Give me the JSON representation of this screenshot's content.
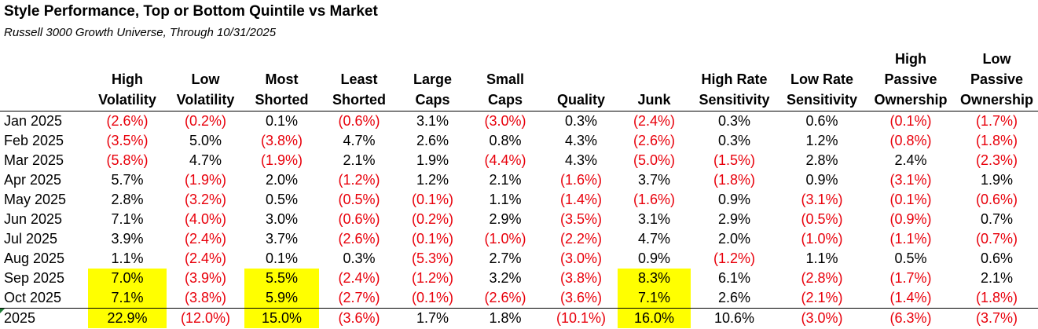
{
  "title": "Style Performance, Top or Bottom Quintile vs Market",
  "subtitle": "Russell 3000 Growth Universe, Through 10/31/2025",
  "columns": [
    [
      "",
      "High",
      "Volatility"
    ],
    [
      "",
      "Low",
      "Volatility"
    ],
    [
      "",
      "Most",
      "Shorted"
    ],
    [
      "",
      "Least",
      "Shorted"
    ],
    [
      "",
      "Large",
      "Caps"
    ],
    [
      "",
      "Small",
      "Caps"
    ],
    [
      "",
      "",
      "Quality"
    ],
    [
      "",
      "",
      "Junk"
    ],
    [
      "",
      "High Rate",
      "Sensitivity"
    ],
    [
      "",
      "Low Rate",
      "Sensitivity"
    ],
    [
      "High",
      "Passive",
      "Ownership"
    ],
    [
      "Low",
      "Passive",
      "Ownership"
    ]
  ],
  "rows": [
    {
      "label": "Jan 2025",
      "values": [
        "(2.6%)",
        "(0.2%)",
        "0.1%",
        "(0.6%)",
        "3.1%",
        "(3.0%)",
        "0.3%",
        "(2.4%)",
        "0.3%",
        "0.6%",
        "(0.1%)",
        "(1.7%)"
      ]
    },
    {
      "label": "Feb 2025",
      "values": [
        "(3.5%)",
        "5.0%",
        "(3.8%)",
        "4.7%",
        "2.6%",
        "0.8%",
        "4.3%",
        "(2.6%)",
        "0.3%",
        "1.2%",
        "(0.8%)",
        "(1.8%)"
      ]
    },
    {
      "label": "Mar 2025",
      "values": [
        "(5.8%)",
        "4.7%",
        "(1.9%)",
        "2.1%",
        "1.9%",
        "(4.4%)",
        "4.3%",
        "(5.0%)",
        "(1.5%)",
        "2.8%",
        "2.4%",
        "(2.3%)"
      ]
    },
    {
      "label": "Apr 2025",
      "values": [
        "5.7%",
        "(1.9%)",
        "2.0%",
        "(1.2%)",
        "1.2%",
        "2.1%",
        "(1.6%)",
        "3.7%",
        "(1.8%)",
        "0.9%",
        "(3.1%)",
        "1.9%"
      ]
    },
    {
      "label": "May 2025",
      "values": [
        "2.8%",
        "(3.2%)",
        "0.5%",
        "(0.5%)",
        "(0.1%)",
        "1.1%",
        "(1.4%)",
        "(1.6%)",
        "0.9%",
        "(3.1%)",
        "(0.1%)",
        "(0.6%)"
      ]
    },
    {
      "label": "Jun 2025",
      "values": [
        "7.1%",
        "(4.0%)",
        "3.0%",
        "(0.6%)",
        "(0.2%)",
        "2.9%",
        "(3.5%)",
        "3.1%",
        "2.9%",
        "(0.5%)",
        "(0.9%)",
        "0.7%"
      ]
    },
    {
      "label": "Jul 2025",
      "values": [
        "3.9%",
        "(2.4%)",
        "3.7%",
        "(2.6%)",
        "(0.1%)",
        "(1.0%)",
        "(2.2%)",
        "4.7%",
        "2.0%",
        "(1.0%)",
        "(1.1%)",
        "(0.7%)"
      ]
    },
    {
      "label": "Aug 2025",
      "values": [
        "1.1%",
        "(2.4%)",
        "0.1%",
        "0.3%",
        "(5.3%)",
        "2.7%",
        "(3.0%)",
        "0.9%",
        "(1.2%)",
        "1.1%",
        "0.5%",
        "0.6%"
      ]
    },
    {
      "label": "Sep 2025",
      "values": [
        "7.0%",
        "(3.9%)",
        "5.5%",
        "(2.4%)",
        "(1.2%)",
        "3.2%",
        "(3.8%)",
        "8.3%",
        "6.1%",
        "(2.8%)",
        "(1.7%)",
        "2.1%"
      ]
    },
    {
      "label": "Oct 2025",
      "values": [
        "7.1%",
        "(3.8%)",
        "5.9%",
        "(2.7%)",
        "(0.1%)",
        "(2.6%)",
        "(3.6%)",
        "7.1%",
        "2.6%",
        "(2.1%)",
        "(1.4%)",
        "(1.8%)"
      ]
    }
  ],
  "total": {
    "label": "2025",
    "values": [
      "22.9%",
      "(12.0%)",
      "15.0%",
      "(3.6%)",
      "1.7%",
      "1.8%",
      "(10.1%)",
      "16.0%",
      "10.6%",
      "(3.0%)",
      "(6.3%)",
      "(3.7%)"
    ]
  },
  "highlighted_columns": [
    0,
    2,
    7
  ],
  "highlighted_rows": [
    "Sep 2025",
    "Oct 2025",
    "2025"
  ],
  "colors": {
    "negative": "#e8000b",
    "highlight": "#ffff00",
    "text": "#000000"
  }
}
